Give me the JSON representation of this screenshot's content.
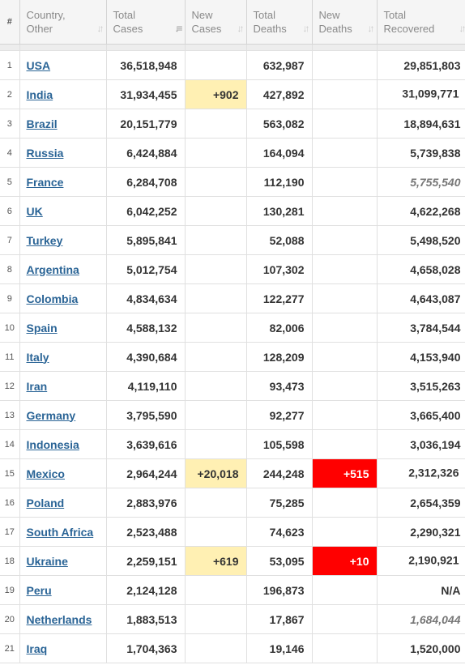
{
  "headers": {
    "rank": "#",
    "country": "Country,\nOther",
    "total_cases": "Total\nCases",
    "new_cases": "New\nCases",
    "total_deaths": "Total\nDeaths",
    "new_deaths": "New\nDeaths",
    "total_recovered": "Total\nRecovered"
  },
  "sort_icons": {
    "default": "↓↑",
    "active": "↓≡"
  },
  "rows": [
    {
      "rank": "1",
      "country": "USA",
      "total_cases": "36,518,948",
      "new_cases": "",
      "total_deaths": "632,987",
      "new_deaths": "",
      "total_recovered": "29,851,803",
      "recovered_style": "normal"
    },
    {
      "rank": "2",
      "country": "India",
      "total_cases": "31,934,455",
      "new_cases": "+902",
      "total_deaths": "427,892",
      "new_deaths": "",
      "total_recovered": "31,099,771",
      "recovered_style": "normal"
    },
    {
      "rank": "3",
      "country": "Brazil",
      "total_cases": "20,151,779",
      "new_cases": "",
      "total_deaths": "563,082",
      "new_deaths": "",
      "total_recovered": "18,894,631",
      "recovered_style": "normal"
    },
    {
      "rank": "4",
      "country": "Russia",
      "total_cases": "6,424,884",
      "new_cases": "",
      "total_deaths": "164,094",
      "new_deaths": "",
      "total_recovered": "5,739,838",
      "recovered_style": "normal"
    },
    {
      "rank": "5",
      "country": "France",
      "total_cases": "6,284,708",
      "new_cases": "",
      "total_deaths": "112,190",
      "new_deaths": "",
      "total_recovered": "5,755,540",
      "recovered_style": "italic"
    },
    {
      "rank": "6",
      "country": "UK",
      "total_cases": "6,042,252",
      "new_cases": "",
      "total_deaths": "130,281",
      "new_deaths": "",
      "total_recovered": "4,622,268",
      "recovered_style": "normal"
    },
    {
      "rank": "7",
      "country": "Turkey",
      "total_cases": "5,895,841",
      "new_cases": "",
      "total_deaths": "52,088",
      "new_deaths": "",
      "total_recovered": "5,498,520",
      "recovered_style": "normal"
    },
    {
      "rank": "8",
      "country": "Argentina",
      "total_cases": "5,012,754",
      "new_cases": "",
      "total_deaths": "107,302",
      "new_deaths": "",
      "total_recovered": "4,658,028",
      "recovered_style": "normal"
    },
    {
      "rank": "9",
      "country": "Colombia",
      "total_cases": "4,834,634",
      "new_cases": "",
      "total_deaths": "122,277",
      "new_deaths": "",
      "total_recovered": "4,643,087",
      "recovered_style": "normal"
    },
    {
      "rank": "10",
      "country": "Spain",
      "total_cases": "4,588,132",
      "new_cases": "",
      "total_deaths": "82,006",
      "new_deaths": "",
      "total_recovered": "3,784,544",
      "recovered_style": "normal"
    },
    {
      "rank": "11",
      "country": "Italy",
      "total_cases": "4,390,684",
      "new_cases": "",
      "total_deaths": "128,209",
      "new_deaths": "",
      "total_recovered": "4,153,940",
      "recovered_style": "normal"
    },
    {
      "rank": "12",
      "country": "Iran",
      "total_cases": "4,119,110",
      "new_cases": "",
      "total_deaths": "93,473",
      "new_deaths": "",
      "total_recovered": "3,515,263",
      "recovered_style": "normal"
    },
    {
      "rank": "13",
      "country": "Germany",
      "total_cases": "3,795,590",
      "new_cases": "",
      "total_deaths": "92,277",
      "new_deaths": "",
      "total_recovered": "3,665,400",
      "recovered_style": "normal"
    },
    {
      "rank": "14",
      "country": "Indonesia",
      "total_cases": "3,639,616",
      "new_cases": "",
      "total_deaths": "105,598",
      "new_deaths": "",
      "total_recovered": "3,036,194",
      "recovered_style": "normal"
    },
    {
      "rank": "15",
      "country": "Mexico",
      "total_cases": "2,964,244",
      "new_cases": "+20,018",
      "total_deaths": "244,248",
      "new_deaths": "+515",
      "total_recovered": "2,312,326",
      "recovered_style": "normal"
    },
    {
      "rank": "16",
      "country": "Poland",
      "total_cases": "2,883,976",
      "new_cases": "",
      "total_deaths": "75,285",
      "new_deaths": "",
      "total_recovered": "2,654,359",
      "recovered_style": "normal"
    },
    {
      "rank": "17",
      "country": "South Africa",
      "total_cases": "2,523,488",
      "new_cases": "",
      "total_deaths": "74,623",
      "new_deaths": "",
      "total_recovered": "2,290,321",
      "recovered_style": "normal"
    },
    {
      "rank": "18",
      "country": "Ukraine",
      "total_cases": "2,259,151",
      "new_cases": "+619",
      "total_deaths": "53,095",
      "new_deaths": "+10",
      "total_recovered": "2,190,921",
      "recovered_style": "normal"
    },
    {
      "rank": "19",
      "country": "Peru",
      "total_cases": "2,124,128",
      "new_cases": "",
      "total_deaths": "196,873",
      "new_deaths": "",
      "total_recovered": "N/A",
      "recovered_style": "normal"
    },
    {
      "rank": "20",
      "country": "Netherlands",
      "total_cases": "1,883,513",
      "new_cases": "",
      "total_deaths": "17,867",
      "new_deaths": "",
      "total_recovered": "1,684,044",
      "recovered_style": "italic"
    },
    {
      "rank": "21",
      "country": "Iraq",
      "total_cases": "1,704,363",
      "new_cases": "",
      "total_deaths": "19,146",
      "new_deaths": "",
      "total_recovered": "1,520,000",
      "recovered_style": "normal"
    }
  ],
  "colors": {
    "new_cases_bg": "#fff0b3",
    "new_deaths_bg": "#ff0000",
    "link": "#2a6496",
    "header_bg": "#f5f5f5"
  }
}
